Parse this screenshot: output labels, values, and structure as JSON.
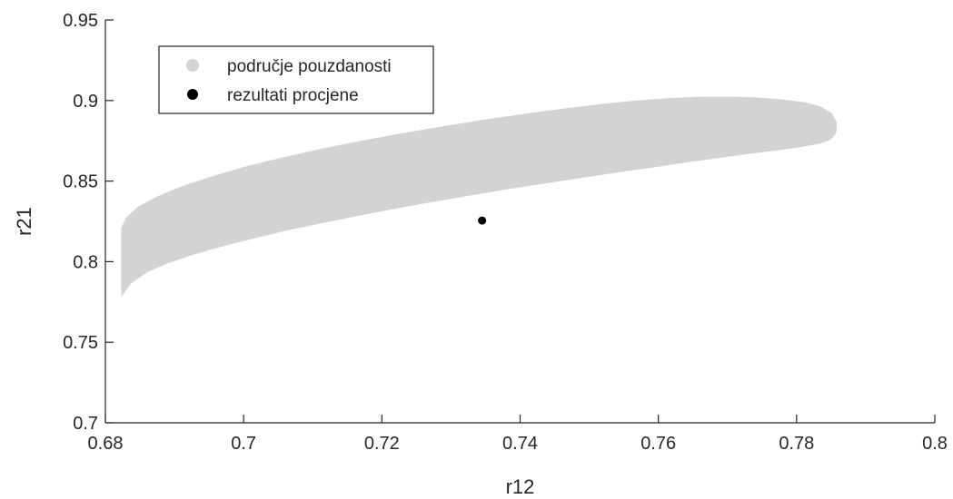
{
  "chart_data": {
    "type": "scatter",
    "title": "",
    "xlabel": "r12",
    "ylabel": "r21",
    "xlim": [
      0.68,
      0.8
    ],
    "ylim": [
      0.7,
      0.95
    ],
    "xticks": [
      0.68,
      0.7,
      0.72,
      0.74,
      0.76,
      0.78,
      0.8
    ],
    "xtick_labels": [
      "0.68",
      "0.7",
      "0.72",
      "0.74",
      "0.76",
      "0.78",
      "0.8"
    ],
    "yticks": [
      0.7,
      0.75,
      0.8,
      0.85,
      0.9,
      0.95
    ],
    "ytick_labels": [
      "0.7",
      "0.75",
      "0.8",
      "0.85",
      "0.9",
      "0.95"
    ],
    "grid": false,
    "legend_position": "top-left",
    "series": [
      {
        "name": "područje pouzdanosti",
        "kind": "region",
        "color": "#d3d3d3",
        "x": [
          0.6823,
          0.6837,
          0.6861,
          0.6891,
          0.6924,
          0.6958,
          0.6992,
          0.7026,
          0.7062,
          0.7103,
          0.715,
          0.7205,
          0.7262,
          0.732,
          0.7378,
          0.7437,
          0.7494,
          0.755,
          0.7601,
          0.7645,
          0.7689,
          0.773,
          0.7767,
          0.7797,
          0.7818,
          0.7835,
          0.7847,
          0.7855,
          0.7858,
          0.7858,
          0.7851,
          0.7835,
          0.7812,
          0.778,
          0.7742,
          0.7701,
          0.766,
          0.7615,
          0.7568,
          0.752,
          0.7466,
          0.7408,
          0.7348,
          0.7288,
          0.7228,
          0.7168,
          0.711,
          0.7055,
          0.7002,
          0.6955,
          0.6912,
          0.6875,
          0.6847,
          0.683,
          0.6823
        ],
        "y": [
          0.7779,
          0.7865,
          0.7935,
          0.7991,
          0.8039,
          0.8081,
          0.812,
          0.8156,
          0.8193,
          0.823,
          0.827,
          0.8317,
          0.8362,
          0.8405,
          0.8447,
          0.8486,
          0.8523,
          0.8559,
          0.859,
          0.8618,
          0.8644,
          0.8668,
          0.8688,
          0.8705,
          0.872,
          0.8734,
          0.8753,
          0.8782,
          0.881,
          0.8866,
          0.8923,
          0.8962,
          0.899,
          0.9007,
          0.9019,
          0.9024,
          0.9023,
          0.9015,
          0.9,
          0.898,
          0.8952,
          0.8919,
          0.8881,
          0.884,
          0.8796,
          0.8749,
          0.8699,
          0.8645,
          0.859,
          0.853,
          0.847,
          0.8405,
          0.834,
          0.8275,
          0.821
        ]
      },
      {
        "name": "rezultati procjene",
        "kind": "point",
        "color": "#000000",
        "x": [
          0.7345
        ],
        "y": [
          0.8255
        ]
      }
    ]
  }
}
